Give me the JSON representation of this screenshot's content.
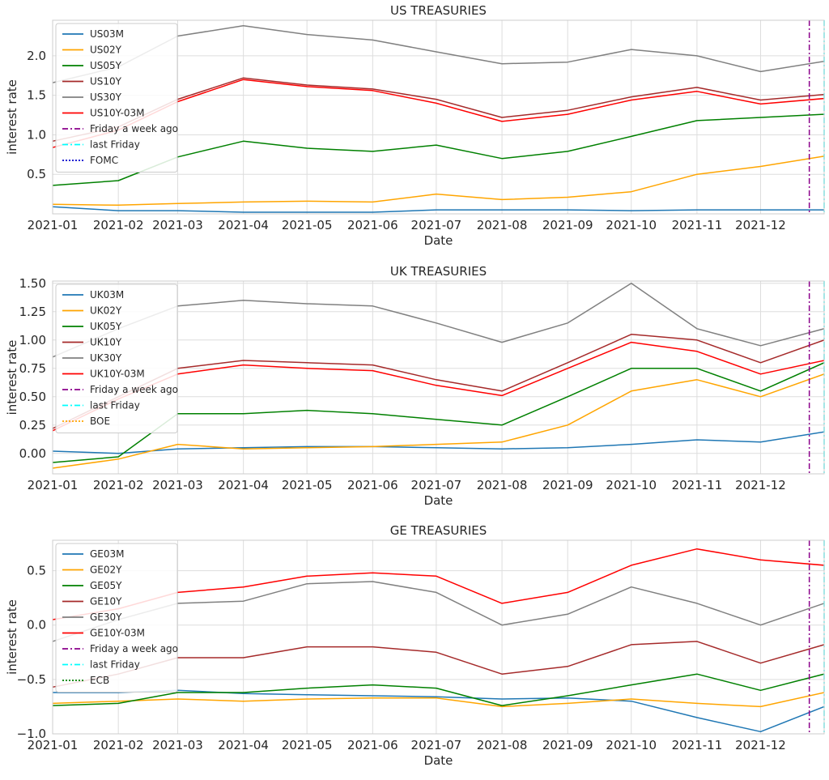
{
  "chart_data": [
    {
      "type": "line",
      "title": "US TREASURIES",
      "xlabel": "Date",
      "ylabel": "interest rate",
      "ylim": [
        0.0,
        2.45
      ],
      "yticks": [
        0.5,
        1.0,
        1.5,
        2.0
      ],
      "ytick_labels": [
        "0.5",
        "1.0",
        "1.5",
        "2.0"
      ],
      "x_tick_labels": [
        "2021-01",
        "2021-02",
        "2021-03",
        "2021-04",
        "2021-05",
        "2021-06",
        "2021-07",
        "2021-08",
        "2021-09",
        "2021-10",
        "2021-11",
        "2021-12"
      ],
      "grid": true,
      "legend_position": "upper-left",
      "series": [
        {
          "name": "US03M",
          "color": "#1f77b4",
          "style": "solid",
          "x": [
            "2021-01-01",
            "2021-02-01",
            "2021-03-01",
            "2021-04-01",
            "2021-05-01",
            "2021-06-01",
            "2021-07-01",
            "2021-08-01",
            "2021-09-01",
            "2021-10-01",
            "2021-11-01",
            "2021-12-01",
            "2021-12-31"
          ],
          "y": [
            0.09,
            0.04,
            0.04,
            0.02,
            0.02,
            0.02,
            0.05,
            0.05,
            0.05,
            0.04,
            0.05,
            0.05,
            0.05
          ]
        },
        {
          "name": "US02Y",
          "color": "#ffa500",
          "style": "solid",
          "x": [
            "2021-01-01",
            "2021-02-01",
            "2021-03-01",
            "2021-04-01",
            "2021-05-01",
            "2021-06-01",
            "2021-07-01",
            "2021-08-01",
            "2021-09-01",
            "2021-10-01",
            "2021-11-01",
            "2021-12-01",
            "2021-12-31"
          ],
          "y": [
            0.12,
            0.11,
            0.13,
            0.15,
            0.16,
            0.15,
            0.25,
            0.18,
            0.21,
            0.28,
            0.5,
            0.6,
            0.73
          ]
        },
        {
          "name": "US05Y",
          "color": "#008000",
          "style": "solid",
          "x": [
            "2021-01-01",
            "2021-02-01",
            "2021-03-01",
            "2021-04-01",
            "2021-05-01",
            "2021-06-01",
            "2021-07-01",
            "2021-08-01",
            "2021-09-01",
            "2021-10-01",
            "2021-11-01",
            "2021-12-01",
            "2021-12-31"
          ],
          "y": [
            0.36,
            0.42,
            0.72,
            0.92,
            0.83,
            0.79,
            0.87,
            0.7,
            0.79,
            0.98,
            1.18,
            1.22,
            1.26
          ]
        },
        {
          "name": "US10Y",
          "color": "#a52a2a",
          "style": "solid",
          "x": [
            "2021-01-01",
            "2021-02-01",
            "2021-03-01",
            "2021-04-01",
            "2021-05-01",
            "2021-06-01",
            "2021-07-01",
            "2021-08-01",
            "2021-09-01",
            "2021-10-01",
            "2021-11-01",
            "2021-12-01",
            "2021-12-31"
          ],
          "y": [
            0.92,
            1.1,
            1.45,
            1.72,
            1.63,
            1.58,
            1.45,
            1.22,
            1.31,
            1.48,
            1.6,
            1.44,
            1.51
          ]
        },
        {
          "name": "US30Y",
          "color": "#808080",
          "style": "solid",
          "x": [
            "2021-01-01",
            "2021-02-01",
            "2021-03-01",
            "2021-04-01",
            "2021-05-01",
            "2021-06-01",
            "2021-07-01",
            "2021-08-01",
            "2021-09-01",
            "2021-10-01",
            "2021-11-01",
            "2021-12-01",
            "2021-12-31"
          ],
          "y": [
            1.66,
            1.86,
            2.25,
            2.38,
            2.27,
            2.2,
            2.05,
            1.9,
            1.92,
            2.08,
            2.0,
            1.8,
            1.93
          ]
        },
        {
          "name": "US10Y-03M",
          "color": "#ff0000",
          "style": "solid",
          "x": [
            "2021-01-01",
            "2021-02-01",
            "2021-03-01",
            "2021-04-01",
            "2021-05-01",
            "2021-06-01",
            "2021-07-01",
            "2021-08-01",
            "2021-09-01",
            "2021-10-01",
            "2021-11-01",
            "2021-12-01",
            "2021-12-31"
          ],
          "y": [
            0.84,
            1.06,
            1.42,
            1.7,
            1.61,
            1.56,
            1.4,
            1.17,
            1.26,
            1.44,
            1.55,
            1.39,
            1.46
          ]
        }
      ],
      "vlines": [
        {
          "name": "Friday a week ago",
          "x": "2021-12-24",
          "color": "#8b008b",
          "style": "dashdot"
        },
        {
          "name": "last Friday",
          "x": "2021-12-31",
          "color": "#00ffff",
          "style": "dashdot"
        },
        {
          "name": "FOMC",
          "x": null,
          "color": "#0000cd",
          "style": "dotted"
        }
      ]
    },
    {
      "type": "line",
      "title": "UK TREASURIES",
      "xlabel": "Date",
      "ylabel": "interest rate",
      "ylim": [
        -0.18,
        1.52
      ],
      "yticks": [
        0.0,
        0.25,
        0.5,
        0.75,
        1.0,
        1.25,
        1.5
      ],
      "ytick_labels": [
        "0.00",
        "0.25",
        "0.50",
        "0.75",
        "1.00",
        "1.25",
        "1.50"
      ],
      "x_tick_labels": [
        "2021-01",
        "2021-02",
        "2021-03",
        "2021-04",
        "2021-05",
        "2021-06",
        "2021-07",
        "2021-08",
        "2021-09",
        "2021-10",
        "2021-11",
        "2021-12"
      ],
      "grid": true,
      "legend_position": "upper-left",
      "series": [
        {
          "name": "UK03M",
          "color": "#1f77b4",
          "style": "solid",
          "x": [
            "2021-01-01",
            "2021-02-01",
            "2021-03-01",
            "2021-04-01",
            "2021-05-01",
            "2021-06-01",
            "2021-07-01",
            "2021-08-01",
            "2021-09-01",
            "2021-10-01",
            "2021-11-01",
            "2021-12-01",
            "2021-12-31"
          ],
          "y": [
            0.02,
            0.0,
            0.04,
            0.05,
            0.06,
            0.06,
            0.05,
            0.04,
            0.05,
            0.08,
            0.12,
            0.1,
            0.19
          ]
        },
        {
          "name": "UK02Y",
          "color": "#ffa500",
          "style": "solid",
          "x": [
            "2021-01-01",
            "2021-02-01",
            "2021-03-01",
            "2021-04-01",
            "2021-05-01",
            "2021-06-01",
            "2021-07-01",
            "2021-08-01",
            "2021-09-01",
            "2021-10-01",
            "2021-11-01",
            "2021-12-01",
            "2021-12-31"
          ],
          "y": [
            -0.13,
            -0.05,
            0.08,
            0.04,
            0.05,
            0.06,
            0.08,
            0.1,
            0.25,
            0.55,
            0.65,
            0.5,
            0.7
          ]
        },
        {
          "name": "UK05Y",
          "color": "#008000",
          "style": "solid",
          "x": [
            "2021-01-01",
            "2021-02-01",
            "2021-03-01",
            "2021-04-01",
            "2021-05-01",
            "2021-06-01",
            "2021-07-01",
            "2021-08-01",
            "2021-09-01",
            "2021-10-01",
            "2021-11-01",
            "2021-12-01",
            "2021-12-31"
          ],
          "y": [
            -0.08,
            -0.03,
            0.35,
            0.35,
            0.38,
            0.35,
            0.3,
            0.25,
            0.5,
            0.75,
            0.75,
            0.55,
            0.8
          ]
        },
        {
          "name": "UK10Y",
          "color": "#a52a2a",
          "style": "solid",
          "x": [
            "2021-01-01",
            "2021-02-01",
            "2021-03-01",
            "2021-04-01",
            "2021-05-01",
            "2021-06-01",
            "2021-07-01",
            "2021-08-01",
            "2021-09-01",
            "2021-10-01",
            "2021-11-01",
            "2021-12-01",
            "2021-12-31"
          ],
          "y": [
            0.22,
            0.5,
            0.75,
            0.82,
            0.8,
            0.78,
            0.65,
            0.55,
            0.8,
            1.05,
            1.0,
            0.8,
            1.0
          ]
        },
        {
          "name": "UK30Y",
          "color": "#808080",
          "style": "solid",
          "x": [
            "2021-01-01",
            "2021-02-01",
            "2021-03-01",
            "2021-04-01",
            "2021-05-01",
            "2021-06-01",
            "2021-07-01",
            "2021-08-01",
            "2021-09-01",
            "2021-10-01",
            "2021-11-01",
            "2021-12-01",
            "2021-12-31"
          ],
          "y": [
            0.85,
            1.1,
            1.3,
            1.35,
            1.32,
            1.3,
            1.15,
            0.98,
            1.15,
            1.5,
            1.1,
            0.95,
            1.1
          ]
        },
        {
          "name": "UK10Y-03M",
          "color": "#ff0000",
          "style": "solid",
          "x": [
            "2021-01-01",
            "2021-02-01",
            "2021-03-01",
            "2021-04-01",
            "2021-05-01",
            "2021-06-01",
            "2021-07-01",
            "2021-08-01",
            "2021-09-01",
            "2021-10-01",
            "2021-11-01",
            "2021-12-01",
            "2021-12-31"
          ],
          "y": [
            0.2,
            0.48,
            0.7,
            0.78,
            0.75,
            0.73,
            0.6,
            0.51,
            0.75,
            0.98,
            0.9,
            0.7,
            0.82
          ]
        }
      ],
      "vlines": [
        {
          "name": "Friday a week ago",
          "x": "2021-12-24",
          "color": "#8b008b",
          "style": "dashdot"
        },
        {
          "name": "last Friday",
          "x": "2021-12-31",
          "color": "#00ffff",
          "style": "dashdot"
        },
        {
          "name": "BOE",
          "x": null,
          "color": "#ffa500",
          "style": "dotted"
        }
      ]
    },
    {
      "type": "line",
      "title": "GE TREASURIES",
      "xlabel": "Date",
      "ylabel": "interest rate",
      "ylim": [
        -1.0,
        0.78
      ],
      "yticks": [
        -1.0,
        -0.5,
        0.0,
        0.5
      ],
      "ytick_labels": [
        "−1.0",
        "−0.5",
        "0.0",
        "0.5"
      ],
      "x_tick_labels": [
        "2021-01",
        "2021-02",
        "2021-03",
        "2021-04",
        "2021-05",
        "2021-06",
        "2021-07",
        "2021-08",
        "2021-09",
        "2021-10",
        "2021-11",
        "2021-12"
      ],
      "grid": true,
      "legend_position": "upper-left",
      "series": [
        {
          "name": "GE03M",
          "color": "#1f77b4",
          "style": "solid",
          "x": [
            "2021-01-01",
            "2021-02-01",
            "2021-03-01",
            "2021-04-01",
            "2021-05-01",
            "2021-06-01",
            "2021-07-01",
            "2021-08-01",
            "2021-09-01",
            "2021-10-01",
            "2021-11-01",
            "2021-12-01",
            "2021-12-31"
          ],
          "y": [
            -0.62,
            -0.62,
            -0.6,
            -0.63,
            -0.64,
            -0.65,
            -0.66,
            -0.68,
            -0.67,
            -0.7,
            -0.85,
            -0.98,
            -0.75
          ]
        },
        {
          "name": "GE02Y",
          "color": "#ffa500",
          "style": "solid",
          "x": [
            "2021-01-01",
            "2021-02-01",
            "2021-03-01",
            "2021-04-01",
            "2021-05-01",
            "2021-06-01",
            "2021-07-01",
            "2021-08-01",
            "2021-09-01",
            "2021-10-01",
            "2021-11-01",
            "2021-12-01",
            "2021-12-31"
          ],
          "y": [
            -0.72,
            -0.7,
            -0.68,
            -0.7,
            -0.68,
            -0.67,
            -0.67,
            -0.75,
            -0.72,
            -0.68,
            -0.72,
            -0.75,
            -0.62
          ]
        },
        {
          "name": "GE05Y",
          "color": "#008000",
          "style": "solid",
          "x": [
            "2021-01-01",
            "2021-02-01",
            "2021-03-01",
            "2021-04-01",
            "2021-05-01",
            "2021-06-01",
            "2021-07-01",
            "2021-08-01",
            "2021-09-01",
            "2021-10-01",
            "2021-11-01",
            "2021-12-01",
            "2021-12-31"
          ],
          "y": [
            -0.74,
            -0.72,
            -0.62,
            -0.62,
            -0.58,
            -0.55,
            -0.58,
            -0.74,
            -0.65,
            -0.55,
            -0.45,
            -0.6,
            -0.45
          ]
        },
        {
          "name": "GE10Y",
          "color": "#a52a2a",
          "style": "solid",
          "x": [
            "2021-01-01",
            "2021-02-01",
            "2021-03-01",
            "2021-04-01",
            "2021-05-01",
            "2021-06-01",
            "2021-07-01",
            "2021-08-01",
            "2021-09-01",
            "2021-10-01",
            "2021-11-01",
            "2021-12-01",
            "2021-12-31"
          ],
          "y": [
            -0.57,
            -0.45,
            -0.3,
            -0.3,
            -0.2,
            -0.2,
            -0.25,
            -0.45,
            -0.38,
            -0.18,
            -0.15,
            -0.35,
            -0.18
          ]
        },
        {
          "name": "GE30Y",
          "color": "#808080",
          "style": "solid",
          "x": [
            "2021-01-01",
            "2021-02-01",
            "2021-03-01",
            "2021-04-01",
            "2021-05-01",
            "2021-06-01",
            "2021-07-01",
            "2021-08-01",
            "2021-09-01",
            "2021-10-01",
            "2021-11-01",
            "2021-12-01",
            "2021-12-31"
          ],
          "y": [
            -0.15,
            0.05,
            0.2,
            0.22,
            0.38,
            0.4,
            0.3,
            0.0,
            0.1,
            0.35,
            0.2,
            0.0,
            0.2
          ]
        },
        {
          "name": "GE10Y-03M",
          "color": "#ff0000",
          "style": "solid",
          "x": [
            "2021-01-01",
            "2021-02-01",
            "2021-03-01",
            "2021-04-01",
            "2021-05-01",
            "2021-06-01",
            "2021-07-01",
            "2021-08-01",
            "2021-09-01",
            "2021-10-01",
            "2021-11-01",
            "2021-12-01",
            "2021-12-31"
          ],
          "y": [
            0.05,
            0.15,
            0.3,
            0.35,
            0.45,
            0.48,
            0.45,
            0.2,
            0.3,
            0.55,
            0.7,
            0.6,
            0.55
          ]
        }
      ],
      "vlines": [
        {
          "name": "Friday a week ago",
          "x": "2021-12-24",
          "color": "#8b008b",
          "style": "dashdot"
        },
        {
          "name": "last Friday",
          "x": "2021-12-31",
          "color": "#00ffff",
          "style": "dashdot"
        },
        {
          "name": "ECB",
          "x": null,
          "color": "#008000",
          "style": "dotted"
        }
      ]
    }
  ]
}
